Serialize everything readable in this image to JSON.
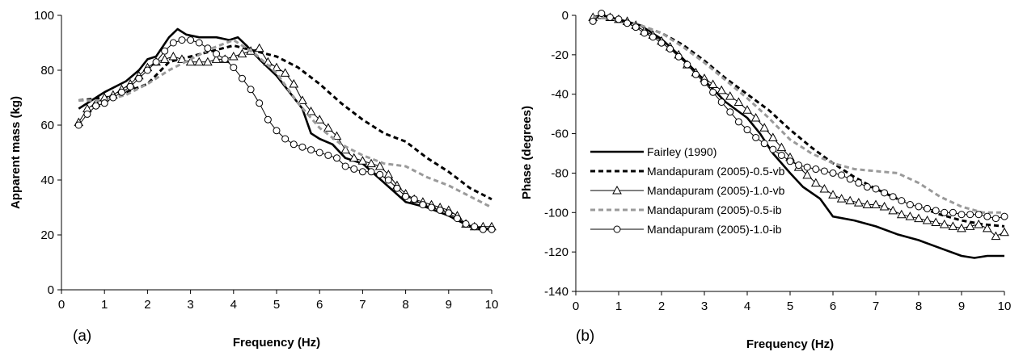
{
  "figure": {
    "panel_a_label": "(a)",
    "panel_b_label": "(b)"
  },
  "colors": {
    "black": "#000000",
    "gray": "#9a9a9a"
  },
  "chart_data": [
    {
      "type": "line",
      "panel": "(a)",
      "xlabel": "Frequency (Hz)",
      "ylabel": "Apparent mass (kg)",
      "xlim": [
        0,
        10
      ],
      "ylim": [
        0,
        100
      ],
      "xticks": [
        0,
        1,
        2,
        3,
        4,
        5,
        6,
        7,
        8,
        9,
        10
      ],
      "yticks": [
        0,
        20,
        40,
        60,
        80,
        100
      ],
      "grid": false,
      "legend": "none",
      "series": [
        {
          "name": "Fairley (1990)",
          "style": "solid-thick",
          "x": [
            0.4,
            1.0,
            1.5,
            1.8,
            2.0,
            2.2,
            2.5,
            2.7,
            2.9,
            3.2,
            3.6,
            3.9,
            4.1,
            4.3,
            4.6,
            5.0,
            5.3,
            5.6,
            5.8,
            6.0,
            6.3,
            6.6,
            7.0,
            7.5,
            8.0,
            8.5,
            9.0,
            9.5,
            10.0
          ],
          "y": [
            66,
            72,
            76,
            80,
            84,
            85,
            92,
            95,
            93,
            92,
            92,
            91,
            92,
            89,
            84,
            78,
            72,
            66,
            57,
            55,
            53,
            48,
            46,
            39,
            32,
            30,
            27,
            23,
            22
          ]
        },
        {
          "name": "Mandapuram (2005)-0.5-vb",
          "style": "dashed-black",
          "x": [
            0.4,
            1.0,
            1.5,
            2.0,
            2.5,
            3.0,
            3.5,
            4.0,
            4.5,
            5.0,
            5.5,
            6.0,
            6.5,
            7.0,
            7.5,
            8.0,
            8.5,
            9.0,
            9.5,
            10.0
          ],
          "y": [
            69,
            70,
            72,
            75,
            83,
            85,
            87,
            89,
            87,
            85,
            81,
            75,
            68,
            62,
            57,
            54,
            48,
            43,
            37,
            33
          ]
        },
        {
          "name": "Mandapuram (2005)-1.0-vb",
          "style": "solid-thin-triangle",
          "x": [
            0.4,
            0.6,
            0.8,
            1.0,
            1.2,
            1.4,
            1.6,
            1.8,
            2.0,
            2.2,
            2.4,
            2.6,
            2.8,
            3.0,
            3.2,
            3.4,
            3.6,
            3.8,
            4.0,
            4.2,
            4.4,
            4.6,
            4.8,
            5.0,
            5.2,
            5.4,
            5.6,
            5.8,
            6.0,
            6.2,
            6.4,
            6.6,
            6.8,
            7.0,
            7.2,
            7.4,
            7.6,
            7.8,
            8.0,
            8.2,
            8.4,
            8.6,
            8.8,
            9.0,
            9.2,
            9.4,
            9.6,
            9.8,
            10.0
          ],
          "y": [
            61,
            66,
            68,
            70,
            71,
            73,
            75,
            78,
            81,
            83,
            84,
            85,
            84,
            83,
            83,
            83,
            84,
            84,
            85,
            86,
            87,
            88,
            83,
            81,
            79,
            75,
            69,
            65,
            62,
            59,
            56,
            51,
            48,
            47,
            46,
            45,
            42,
            38,
            35,
            33,
            32,
            31,
            30,
            29,
            27,
            24,
            23,
            23,
            23
          ]
        },
        {
          "name": "Mandapuram (2005)-0.5-ib",
          "style": "dashed-gray",
          "x": [
            0.4,
            1.0,
            1.5,
            2.0,
            2.5,
            3.0,
            3.5,
            4.0,
            4.5,
            5.0,
            5.5,
            6.0,
            6.5,
            7.0,
            7.5,
            8.0,
            8.5,
            9.0,
            9.5,
            10.0
          ],
          "y": [
            69,
            69,
            71,
            75,
            80,
            84,
            88,
            91,
            86,
            79,
            68,
            59,
            53,
            49,
            46,
            45,
            41,
            38,
            34,
            30
          ]
        },
        {
          "name": "Mandapuram (2005)-1.0-ib",
          "style": "solid-thin-circle",
          "x": [
            0.4,
            0.6,
            0.8,
            1.0,
            1.2,
            1.4,
            1.6,
            1.8,
            2.0,
            2.2,
            2.4,
            2.6,
            2.8,
            3.0,
            3.2,
            3.4,
            3.6,
            3.8,
            4.0,
            4.2,
            4.4,
            4.6,
            4.8,
            5.0,
            5.2,
            5.4,
            5.6,
            5.8,
            6.0,
            6.2,
            6.4,
            6.6,
            6.8,
            7.0,
            7.2,
            7.4,
            7.6,
            7.8,
            8.0,
            8.2,
            8.4,
            8.6,
            8.8,
            9.0,
            9.2,
            9.4,
            9.6,
            9.8,
            10.0
          ],
          "y": [
            60,
            64,
            67,
            68,
            70,
            72,
            74,
            77,
            80,
            83,
            87,
            90,
            91,
            91,
            90,
            88,
            86,
            84,
            81,
            77,
            73,
            68,
            62,
            58,
            55,
            53,
            52,
            51,
            50,
            49,
            48,
            45,
            44,
            43,
            43,
            42,
            40,
            37,
            34,
            33,
            31,
            30,
            29,
            28,
            26,
            24,
            23,
            22,
            22
          ]
        }
      ]
    },
    {
      "type": "line",
      "panel": "(b)",
      "xlabel": "Frequency (Hz)",
      "ylabel": "Phase (degrees)",
      "xlim": [
        0,
        10
      ],
      "ylim": [
        -140,
        0
      ],
      "xticks": [
        0,
        1,
        2,
        3,
        4,
        5,
        6,
        7,
        8,
        9,
        10
      ],
      "yticks": [
        0,
        -20,
        -40,
        -60,
        -80,
        -100,
        -120,
        -140
      ],
      "grid": false,
      "legend": "bottom-left",
      "series": [
        {
          "name": "Fairley (1990)",
          "style": "solid-thick",
          "x": [
            0.4,
            0.6,
            1.0,
            1.5,
            2.0,
            2.5,
            3.0,
            3.5,
            4.0,
            4.3,
            4.6,
            5.0,
            5.3,
            5.7,
            6.0,
            6.5,
            7.0,
            7.5,
            8.0,
            8.5,
            9.0,
            9.3,
            9.6,
            10.0
          ],
          "y": [
            -1,
            0,
            -2,
            -5,
            -12,
            -22,
            -33,
            -44,
            -52,
            -60,
            -70,
            -80,
            -87,
            -93,
            -102,
            -104,
            -107,
            -111,
            -114,
            -118,
            -122,
            -123,
            -122,
            -122
          ]
        },
        {
          "name": "Mandapuram (2005)-0.5-vb",
          "style": "dashed-black",
          "x": [
            0.4,
            1.0,
            1.5,
            2.0,
            2.5,
            3.0,
            3.5,
            4.0,
            4.5,
            5.0,
            5.5,
            6.0,
            6.5,
            7.0,
            7.5,
            8.0,
            8.5,
            9.0,
            9.5,
            10.0
          ],
          "y": [
            -1,
            -2,
            -5,
            -9,
            -15,
            -23,
            -32,
            -40,
            -48,
            -58,
            -67,
            -75,
            -82,
            -88,
            -93,
            -97,
            -101,
            -104,
            -106,
            -107
          ]
        },
        {
          "name": "Mandapuram (2005)-1.0-vb",
          "style": "solid-thin-triangle",
          "x": [
            0.4,
            0.6,
            0.8,
            1.0,
            1.2,
            1.4,
            1.6,
            1.8,
            2.0,
            2.2,
            2.4,
            2.6,
            2.8,
            3.0,
            3.2,
            3.4,
            3.6,
            3.8,
            4.0,
            4.2,
            4.4,
            4.6,
            4.8,
            5.0,
            5.2,
            5.4,
            5.6,
            5.8,
            6.0,
            6.2,
            6.4,
            6.6,
            6.8,
            7.0,
            7.2,
            7.4,
            7.6,
            7.8,
            8.0,
            8.2,
            8.4,
            8.6,
            8.8,
            9.0,
            9.2,
            9.4,
            9.6,
            9.8,
            10.0
          ],
          "y": [
            -1,
            0,
            -1,
            -2,
            -3,
            -5,
            -8,
            -10,
            -13,
            -16,
            -20,
            -25,
            -29,
            -32,
            -35,
            -38,
            -41,
            -44,
            -48,
            -52,
            -57,
            -62,
            -67,
            -72,
            -77,
            -81,
            -85,
            -88,
            -91,
            -93,
            -94,
            -95,
            -96,
            -96,
            -97,
            -99,
            -101,
            -102,
            -103,
            -104,
            -105,
            -106,
            -107,
            -108,
            -107,
            -106,
            -108,
            -112,
            -110
          ]
        },
        {
          "name": "Mandapuram (2005)-0.5-ib",
          "style": "dashed-gray",
          "x": [
            0.4,
            1.0,
            1.5,
            2.0,
            2.5,
            3.0,
            3.5,
            4.0,
            4.5,
            5.0,
            5.5,
            6.0,
            6.5,
            7.0,
            7.5,
            8.0,
            8.5,
            9.0,
            9.5,
            10.0
          ],
          "y": [
            -1,
            -2,
            -5,
            -9,
            -16,
            -24,
            -33,
            -42,
            -52,
            -63,
            -70,
            -75,
            -78,
            -79,
            -80,
            -85,
            -92,
            -97,
            -100,
            -100
          ]
        },
        {
          "name": "Mandapuram (2005)-1.0-ib",
          "style": "solid-thin-circle",
          "x": [
            0.4,
            0.6,
            0.8,
            1.0,
            1.2,
            1.4,
            1.6,
            1.8,
            2.0,
            2.2,
            2.4,
            2.6,
            2.8,
            3.0,
            3.2,
            3.4,
            3.6,
            3.8,
            4.0,
            4.2,
            4.4,
            4.6,
            4.8,
            5.0,
            5.2,
            5.4,
            5.6,
            5.8,
            6.0,
            6.2,
            6.4,
            6.6,
            6.8,
            7.0,
            7.2,
            7.4,
            7.6,
            7.8,
            8.0,
            8.2,
            8.4,
            8.6,
            8.8,
            9.0,
            9.2,
            9.4,
            9.6,
            9.8,
            10.0
          ],
          "y": [
            -3,
            1,
            -1,
            -2,
            -4,
            -6,
            -9,
            -11,
            -14,
            -17,
            -21,
            -25,
            -30,
            -34,
            -39,
            -44,
            -49,
            -54,
            -58,
            -62,
            -65,
            -68,
            -71,
            -74,
            -76,
            -77,
            -78,
            -79,
            -80,
            -81,
            -83,
            -85,
            -87,
            -88,
            -90,
            -92,
            -94,
            -96,
            -97,
            -98,
            -99,
            -100,
            -100,
            -101,
            -101,
            -101,
            -102,
            -103,
            -102
          ]
        }
      ]
    }
  ]
}
